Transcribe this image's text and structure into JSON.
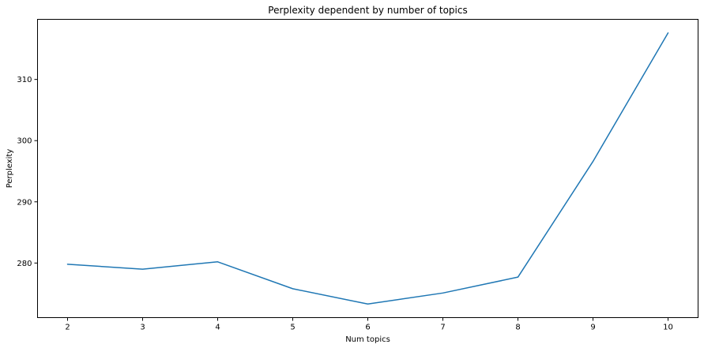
{
  "chart_data": {
    "type": "line",
    "title": "Perplexity dependent by number of topics",
    "xlabel": "Num topics",
    "ylabel": "Perplexity",
    "x": [
      2,
      3,
      4,
      5,
      6,
      7,
      8,
      9,
      10
    ],
    "series": [
      {
        "values": [
          279.8,
          279.0,
          280.2,
          275.8,
          273.3,
          275.1,
          277.7,
          296.6,
          317.6
        ],
        "color": "#1f77b4"
      }
    ],
    "xticks": [
      2,
      3,
      4,
      5,
      6,
      7,
      8,
      9,
      10
    ],
    "yticks": [
      280,
      290,
      300,
      310
    ],
    "xlim": [
      1.6,
      10.4
    ],
    "ylim": [
      271.08,
      319.82
    ],
    "grid": false,
    "legend": "none"
  }
}
